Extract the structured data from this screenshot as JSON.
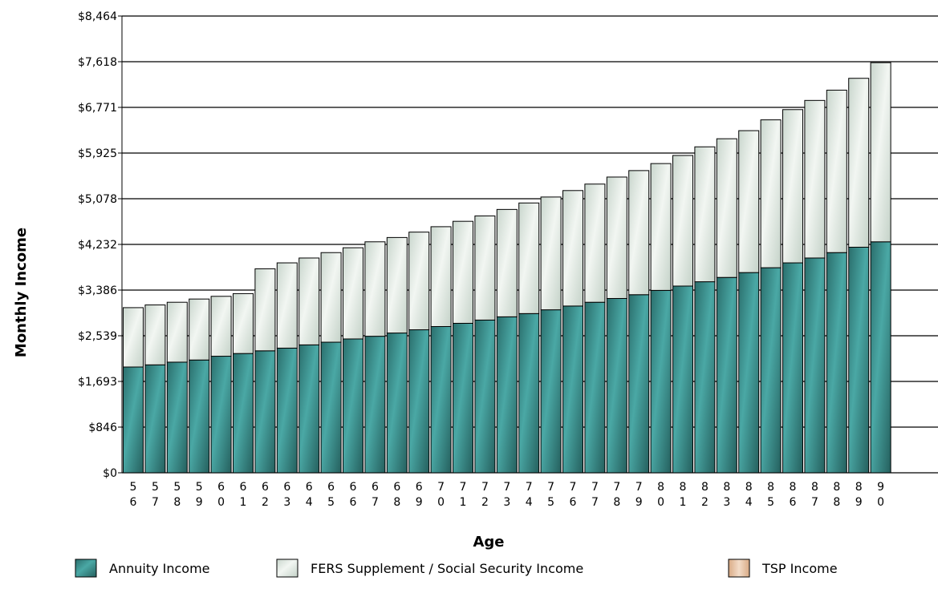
{
  "chart_data": {
    "type": "bar",
    "stacked": true,
    "ylabel": "Monthly Income",
    "xlabel": "Age",
    "ylim": [
      0,
      8464
    ],
    "y_ticks": [
      "$0",
      "$846",
      "$1,693",
      "$2,539",
      "$3,386",
      "$4,232",
      "$5,078",
      "$5,925",
      "$6,771",
      "$7,618",
      "$8,464"
    ],
    "categories": [
      "56",
      "57",
      "58",
      "59",
      "60",
      "61",
      "62",
      "63",
      "64",
      "65",
      "66",
      "67",
      "68",
      "69",
      "70",
      "71",
      "72",
      "73",
      "74",
      "75",
      "76",
      "77",
      "78",
      "79",
      "80",
      "81",
      "82",
      "83",
      "84",
      "85",
      "86",
      "87",
      "88",
      "89",
      "90"
    ],
    "series": [
      {
        "name": "Annuity Income",
        "color": "#3a8f8c",
        "values": [
          1960,
          2000,
          2050,
          2090,
          2160,
          2210,
          2260,
          2310,
          2370,
          2420,
          2480,
          2530,
          2590,
          2650,
          2710,
          2770,
          2830,
          2890,
          2950,
          3020,
          3090,
          3160,
          3230,
          3300,
          3380,
          3460,
          3540,
          3620,
          3710,
          3800,
          3890,
          3980,
          4080,
          4180,
          4280
        ]
      },
      {
        "name": "FERS Supplement / Social Security Income",
        "color": "#dfe8e0",
        "values": [
          1100,
          1110,
          1110,
          1130,
          1110,
          1110,
          1520,
          1580,
          1610,
          1660,
          1690,
          1750,
          1770,
          1810,
          1850,
          1890,
          1930,
          1990,
          2050,
          2090,
          2140,
          2190,
          2250,
          2300,
          2350,
          2420,
          2500,
          2570,
          2630,
          2740,
          2840,
          2920,
          3010,
          3130,
          3320
        ]
      },
      {
        "name": "TSP Income",
        "color": "#e5c4a8",
        "values": [
          0,
          0,
          0,
          0,
          0,
          0,
          0,
          0,
          0,
          0,
          0,
          0,
          0,
          0,
          0,
          0,
          0,
          0,
          0,
          0,
          0,
          0,
          0,
          0,
          0,
          0,
          0,
          0,
          0,
          0,
          0,
          0,
          0,
          0,
          0
        ]
      }
    ],
    "grid": true,
    "legend_position": "bottom"
  }
}
